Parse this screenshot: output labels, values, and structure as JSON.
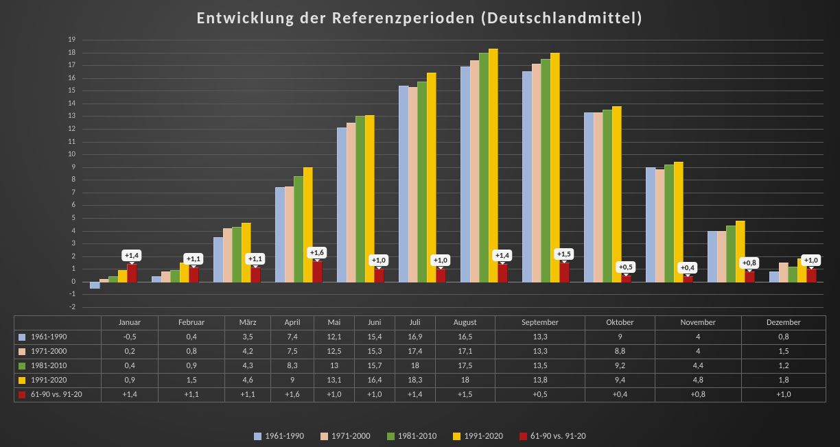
{
  "title": "Entwicklung der Referenzperioden (Deutschlandmittel)",
  "background": "radial-gradient(#4a4a4a,#1a1a1a)",
  "grid_color": "#5a5a5a",
  "text_color": "#d0d0d0",
  "title_fontsize": 24,
  "axis_fontsize": 11,
  "table_fontsize": 12,
  "chart": {
    "type": "bar",
    "ylim": [
      -2,
      19
    ],
    "ytick_step": 1,
    "bar_group_gap_ratio": 0.25,
    "months": [
      "Januar",
      "Februar",
      "März",
      "April",
      "Mai",
      "Juni",
      "Juli",
      "August",
      "September",
      "Oktober",
      "November",
      "Dezember"
    ],
    "series": [
      {
        "name": "1961-1990",
        "color": "#9fb4d9",
        "values": [
          -0.5,
          0.4,
          3.5,
          7.4,
          12.1,
          15.4,
          16.9,
          16.5,
          13.3,
          9.0,
          4.0,
          0.8
        ]
      },
      {
        "name": "1971-2000",
        "color": "#e8bda0",
        "values": [
          0.2,
          0.8,
          4.2,
          7.5,
          12.5,
          15.3,
          17.4,
          17.1,
          13.3,
          8.8,
          4.0,
          1.5
        ]
      },
      {
        "name": "1981-2010",
        "color": "#6b9e3b",
        "values": [
          0.4,
          0.9,
          4.3,
          8.3,
          13.0,
          15.7,
          18.0,
          17.5,
          13.5,
          9.2,
          4.4,
          1.2
        ]
      },
      {
        "name": "1991-2020",
        "color": "#f5c400",
        "values": [
          0.9,
          1.5,
          4.6,
          9.0,
          13.1,
          16.4,
          18.3,
          18.0,
          13.8,
          9.4,
          4.8,
          1.8
        ]
      },
      {
        "name": "61-90 vs. 91-20",
        "color": "#b01818",
        "values": [
          1.4,
          1.1,
          1.1,
          1.6,
          1.0,
          1.0,
          1.4,
          1.5,
          0.5,
          0.4,
          0.8,
          1.0
        ],
        "labels": [
          "+1,4",
          "+1,1",
          "+1,1",
          "+1,6",
          "+1,0",
          "+1,0",
          "+1,4",
          "+1,5",
          "+0,5",
          "+0,4",
          "+0,8",
          "+1,0"
        ]
      }
    ]
  },
  "table": {
    "rows_format": "comma-decimal",
    "row_labels": [
      "1961-1990",
      "1971-2000",
      "1981-2010",
      "1991-2020",
      "61-90 vs. 91-20"
    ],
    "cells": [
      [
        "-0,5",
        "0,4",
        "3,5",
        "7,4",
        "12,1",
        "15,4",
        "16,9",
        "16,5",
        "13,3",
        "9",
        "4",
        "0,8"
      ],
      [
        "0,2",
        "0,8",
        "4,2",
        "7,5",
        "12,5",
        "15,3",
        "17,4",
        "17,1",
        "13,3",
        "8,8",
        "4",
        "1,5"
      ],
      [
        "0,4",
        "0,9",
        "4,3",
        "8,3",
        "13",
        "15,7",
        "18",
        "17,5",
        "13,5",
        "9,2",
        "4,4",
        "1,2"
      ],
      [
        "0,9",
        "1,5",
        "4,6",
        "9",
        "13,1",
        "16,4",
        "18,3",
        "18",
        "13,8",
        "9,4",
        "4,8",
        "1,8"
      ],
      [
        "+1,4",
        "+1,1",
        "+1,1",
        "+1,6",
        "+1,0",
        "+1,0",
        "+1,4",
        "+1,5",
        "+0,5",
        "+0,4",
        "+0,8",
        "+1,0"
      ]
    ]
  }
}
